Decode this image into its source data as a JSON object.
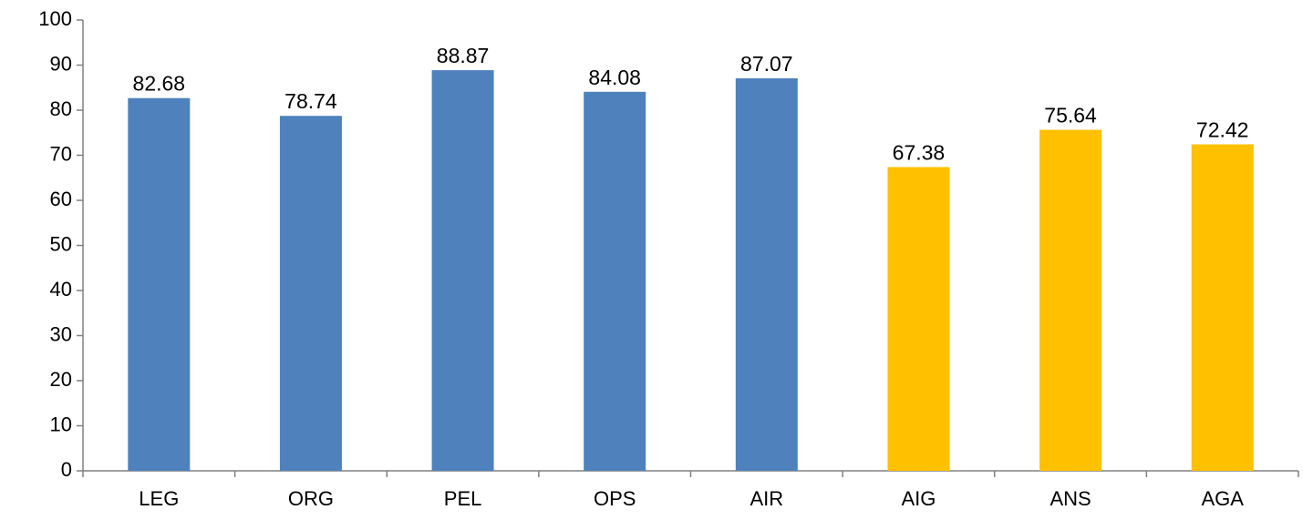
{
  "chart_data": {
    "type": "bar",
    "title": "",
    "xlabel": "",
    "ylabel": "",
    "categories": [
      "LEG",
      "ORG",
      "PEL",
      "OPS",
      "AIR",
      "AIG",
      "ANS",
      "AGA"
    ],
    "values": [
      82.68,
      78.74,
      88.87,
      84.08,
      87.07,
      67.38,
      75.64,
      72.42
    ],
    "value_labels": [
      "82.68",
      "78.74",
      "88.87",
      "84.08",
      "87.07",
      "67.38",
      "75.64",
      "72.42"
    ],
    "bar_colors": [
      "#4f81bd",
      "#4f81bd",
      "#4f81bd",
      "#4f81bd",
      "#4f81bd",
      "#ffc000",
      "#ffc000",
      "#ffc000"
    ],
    "ylim": [
      0,
      100
    ],
    "yticks": [
      0,
      10,
      20,
      30,
      40,
      50,
      60,
      70,
      80,
      90,
      100
    ],
    "ytick_labels": [
      "0",
      "10",
      "20",
      "30",
      "40",
      "50",
      "60",
      "70",
      "80",
      "90",
      "100"
    ],
    "grid": false,
    "legend": "none",
    "axis_color": "#808080"
  }
}
